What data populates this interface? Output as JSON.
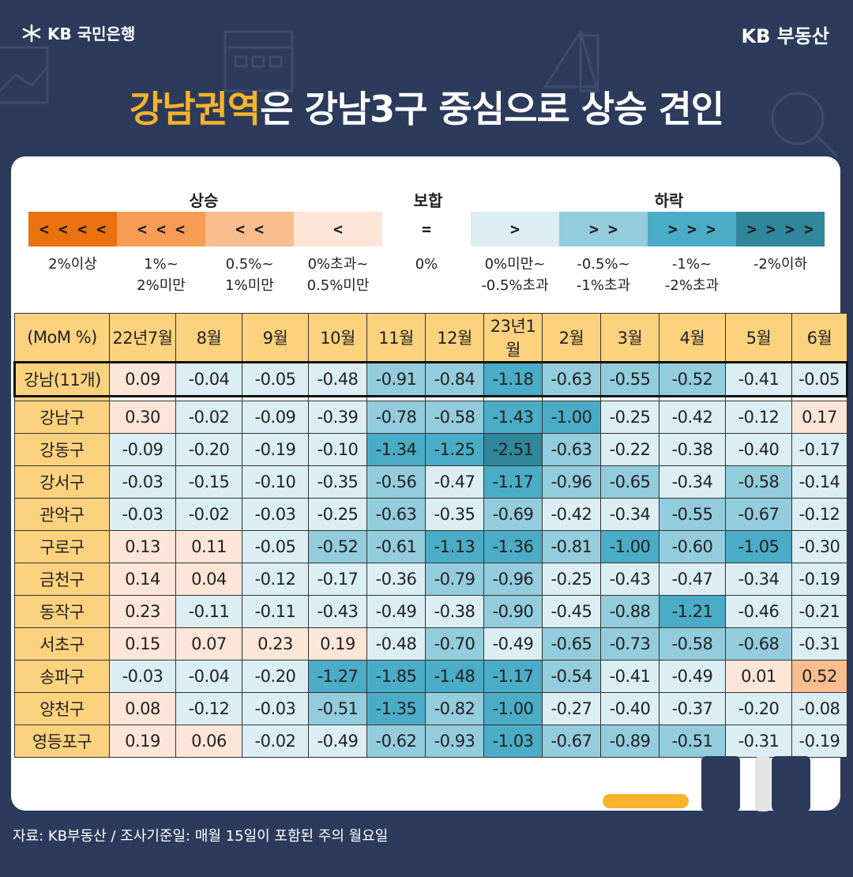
{
  "header": {
    "brand_left": "KB 국민은행",
    "brand_right": "KB 부동산",
    "title_highlight": "강남권역",
    "title_rest": "은 강남3구 중심으로 상승 견인"
  },
  "legend": {
    "groups": [
      {
        "label": "상승"
      },
      {
        "label": "보합"
      },
      {
        "label": "하락"
      }
    ],
    "items": [
      {
        "symbol": "< < < <",
        "range": "2%이상",
        "color": "#e9720f"
      },
      {
        "symbol": "< < <",
        "range": "1%~\n2%미만",
        "color": "#f79c55"
      },
      {
        "symbol": "< <",
        "range": "0.5%~\n1%미만",
        "color": "#f9bd90"
      },
      {
        "symbol": "<",
        "range": "0%초과~\n0.5%미만",
        "color": "#fde6d8"
      },
      {
        "symbol": "=",
        "range": "0%",
        "color": "#ffffff"
      },
      {
        "symbol": ">",
        "range": "0%미만~\n-0.5%초과",
        "color": "#daeef3"
      },
      {
        "symbol": "> >",
        "range": "-0.5%~\n-1%초과",
        "color": "#93ccdc"
      },
      {
        "symbol": "> > >",
        "range": "-1%~\n-2%초과",
        "color": "#4aacc6"
      },
      {
        "symbol": "> > > >",
        "range": "-2%이하",
        "color": "#30869b"
      }
    ]
  },
  "chart_data": {
    "type": "heatmap",
    "corner_label": "(MoM %)",
    "columns": [
      "22년7월",
      "8월",
      "9월",
      "10월",
      "11월",
      "12월",
      "23년1월",
      "2월",
      "3월",
      "4월",
      "5월",
      "6월"
    ],
    "summary_row": {
      "name": "강남(11개)",
      "values": [
        0.09,
        -0.04,
        -0.05,
        -0.48,
        -0.91,
        -0.84,
        -1.18,
        -0.63,
        -0.55,
        -0.52,
        -0.41,
        -0.05
      ]
    },
    "rows": [
      {
        "name": "강남구",
        "values": [
          0.3,
          -0.02,
          -0.09,
          -0.39,
          -0.78,
          -0.58,
          -1.43,
          -1.0,
          -0.25,
          -0.42,
          -0.12,
          0.17
        ]
      },
      {
        "name": "강동구",
        "values": [
          -0.09,
          -0.2,
          -0.19,
          -0.1,
          -1.34,
          -1.25,
          -2.51,
          -0.63,
          -0.22,
          -0.38,
          -0.4,
          -0.17
        ]
      },
      {
        "name": "강서구",
        "values": [
          -0.03,
          -0.15,
          -0.1,
          -0.35,
          -0.56,
          -0.47,
          -1.17,
          -0.96,
          -0.65,
          -0.34,
          -0.58,
          -0.14
        ]
      },
      {
        "name": "관악구",
        "values": [
          -0.03,
          -0.02,
          -0.03,
          -0.25,
          -0.63,
          -0.35,
          -0.69,
          -0.42,
          -0.34,
          -0.55,
          -0.67,
          -0.12
        ]
      },
      {
        "name": "구로구",
        "values": [
          0.13,
          0.11,
          -0.05,
          -0.52,
          -0.61,
          -1.13,
          -1.36,
          -0.81,
          -1.0,
          -0.6,
          -1.05,
          -0.3
        ]
      },
      {
        "name": "금천구",
        "values": [
          0.14,
          0.04,
          -0.12,
          -0.17,
          -0.36,
          -0.79,
          -0.96,
          -0.25,
          -0.43,
          -0.47,
          -0.34,
          -0.19
        ]
      },
      {
        "name": "동작구",
        "values": [
          0.23,
          -0.11,
          -0.11,
          -0.43,
          -0.49,
          -0.38,
          -0.9,
          -0.45,
          -0.88,
          -1.21,
          -0.46,
          -0.21
        ]
      },
      {
        "name": "서초구",
        "values": [
          0.15,
          0.07,
          0.23,
          0.19,
          -0.48,
          -0.7,
          -0.49,
          -0.65,
          -0.73,
          -0.58,
          -0.68,
          -0.31
        ]
      },
      {
        "name": "송파구",
        "values": [
          -0.03,
          -0.04,
          -0.2,
          -1.27,
          -1.85,
          -1.48,
          -1.17,
          -0.54,
          -0.41,
          -0.49,
          0.01,
          0.52
        ]
      },
      {
        "name": "양천구",
        "values": [
          0.08,
          -0.12,
          -0.03,
          -0.51,
          -1.35,
          -0.82,
          -1.0,
          -0.27,
          -0.4,
          -0.37,
          -0.2,
          -0.08
        ]
      },
      {
        "name": "영등포구",
        "values": [
          0.19,
          0.06,
          -0.02,
          -0.49,
          -0.62,
          -0.93,
          -1.03,
          -0.67,
          -0.89,
          -0.51,
          -0.31,
          -0.19
        ]
      }
    ],
    "colors": {
      "header_bg": "#fdd27e",
      "up_0_05": "#fde6d8",
      "up_05_1": "#f9bd90",
      "up_1_2": "#f79c55",
      "up_2": "#e9720f",
      "down_0_05": "#daeef3",
      "down_05_1": "#93ccdc",
      "down_1_2": "#4aacc6",
      "down_2": "#30869b"
    }
  },
  "footer": {
    "source": "자료: KB부동산 / 조사기준일: 매월 15일이 포함된 주의 월요일"
  }
}
